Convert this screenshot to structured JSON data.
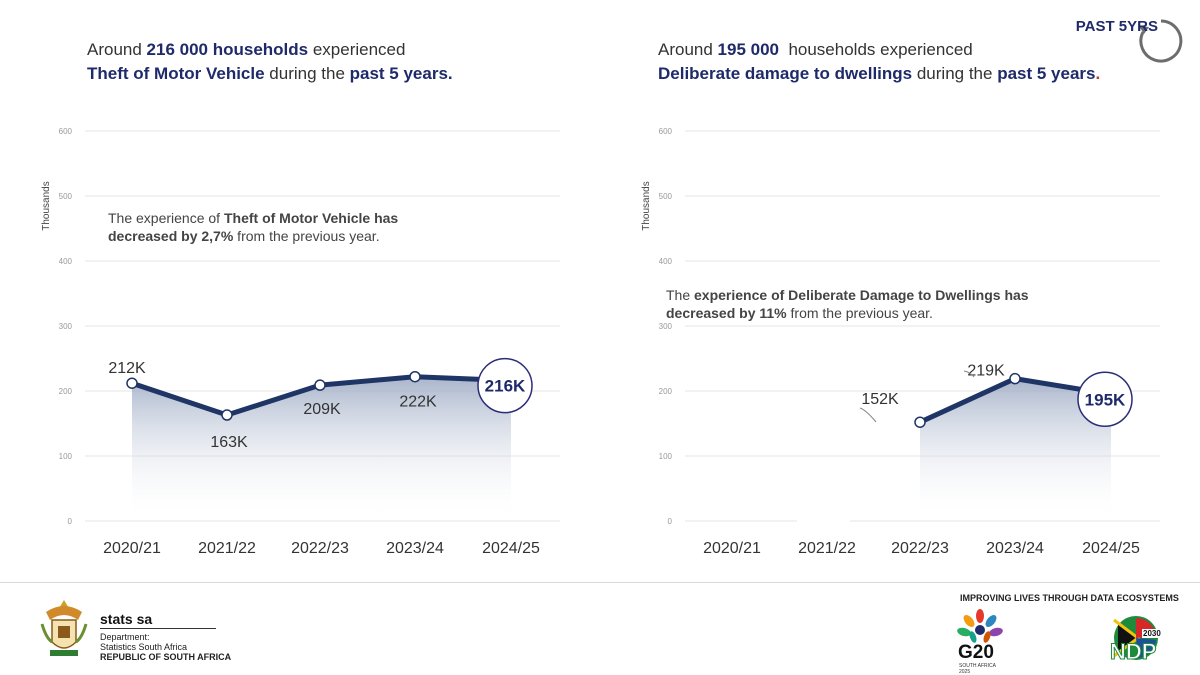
{
  "badge": {
    "text": "PAST 5YRS",
    "icon": "circular-arrow-icon"
  },
  "left": {
    "headline_pre": "Around ",
    "headline_num": "216 000 households",
    "headline_post": " experienced",
    "headline_l2_bold": "Theft of Motor Vehicle",
    "headline_l2_mid": " during the ",
    "headline_l2_end": "past 5 years.",
    "note_pre": "The experience of ",
    "note_bold1": "Theft of Motor Vehicle has",
    "note_bold2": "decreased by 2,7%",
    "note_post": " from the previous year."
  },
  "right": {
    "headline_pre": "Around ",
    "headline_num": "195 000",
    "headline_post": "  households experienced",
    "headline_l2_bold": "Deliberate damage to dwellings",
    "headline_l2_mid": " during the ",
    "headline_l2_end": "past 5 years",
    "headline_l2_dot": ".",
    "note_pre": "The ",
    "note_bold1": "experience of Deliberate Damage to Dwellings has",
    "note_bold2": "decreased by 11%",
    "note_post": " from the previous year."
  },
  "chart_data": [
    {
      "type": "line",
      "ylabel": "Thousands",
      "ylim": [
        0,
        600
      ],
      "yticks": [
        0,
        100,
        200,
        300,
        400,
        500,
        600
      ],
      "grid": true,
      "categories": [
        "2020/21",
        "2021/22",
        "2022/23",
        "2023/24",
        "2024/25"
      ],
      "values": [
        212,
        163,
        209,
        222,
        216
      ],
      "labels": [
        "212K",
        "163K",
        "209K",
        "222K",
        "216K"
      ],
      "highlight_last": true,
      "color": "#1f3566"
    },
    {
      "type": "line",
      "ylabel": "Thousands",
      "ylim": [
        0,
        600
      ],
      "yticks": [
        0,
        100,
        200,
        300,
        400,
        500,
        600
      ],
      "grid": true,
      "categories": [
        "2020/21",
        "2021/22",
        "2022/23",
        "2023/24",
        "2024/25"
      ],
      "values": [
        null,
        null,
        152,
        219,
        195
      ],
      "labels": [
        "",
        "",
        "152K",
        "219K",
        "195K"
      ],
      "highlight_last": true,
      "color": "#1f3566"
    }
  ],
  "footer": {
    "brand": "stats sa",
    "dept1": "Department:",
    "dept2": "Statistics South Africa",
    "dept3": "REPUBLIC OF SOUTH AFRICA",
    "tagline": "IMPROVING LIVES THROUGH DATA ECOSYSTEMS",
    "g20": "G20",
    "g20_sub": "SOUTH AFRICA 2025",
    "ndp": "NDP",
    "ndp_year": "2030"
  }
}
